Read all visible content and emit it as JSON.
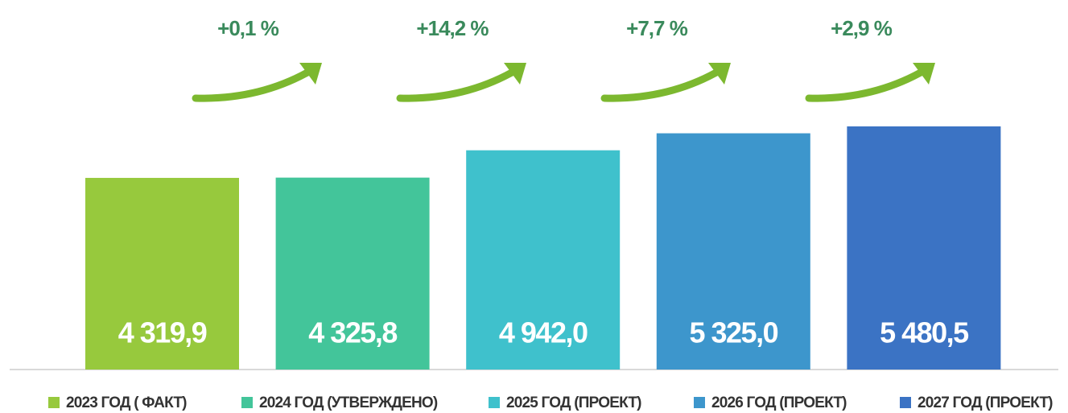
{
  "chart_data": {
    "type": "bar",
    "series": [
      {
        "name": "2023 ГОД ( ФАКТ)",
        "color": "#97c93d",
        "values": [
          4319.9
        ],
        "value_labels": [
          "4 319,9"
        ]
      },
      {
        "name": "2024 ГОД (УТВЕРЖДЕНО)",
        "color": "#43c59a",
        "values": [
          4325.8
        ],
        "value_labels": [
          "4 325,8"
        ]
      },
      {
        "name": "2025 ГОД (ПРОЕКТ)",
        "color": "#3fc1cc",
        "values": [
          4942.0
        ],
        "value_labels": [
          "4 942,0"
        ]
      },
      {
        "name": "2026 ГОД (ПРОЕКТ)",
        "color": "#3d96cc",
        "values": [
          5325.0
        ],
        "value_labels": [
          "5 325,0"
        ]
      },
      {
        "name": "2027 ГОД (ПРОЕКТ)",
        "color": "#3b73c4",
        "values": [
          5480.5
        ],
        "value_labels": [
          "5 480,5"
        ]
      }
    ],
    "annotations": [
      "+0,1 %",
      "+14,2 %",
      "+7,7 %",
      "+2,9 %"
    ]
  }
}
